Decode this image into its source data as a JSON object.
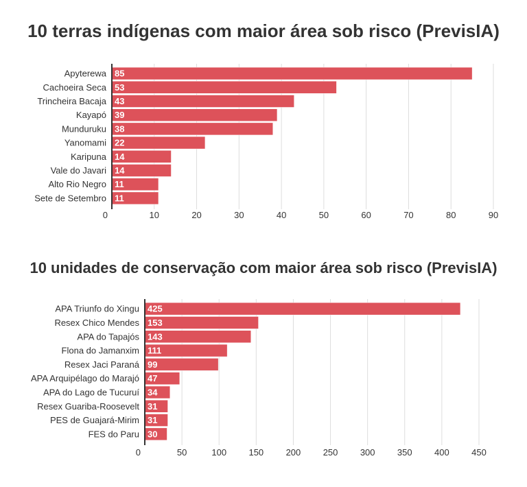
{
  "colors": {
    "bar": "#dd525a",
    "grid": "#dddddd",
    "axis": "#333333"
  },
  "chart_data": [
    {
      "type": "bar",
      "orientation": "horizontal",
      "title": "10 terras indígenas com maior área sob risco (PrevisIA)",
      "categories": [
        "Apyterewa",
        "Cachoeira Seca",
        "Trincheira Bacaja",
        "Kayapó",
        "Munduruku",
        "Yanomami",
        "Karipuna",
        "Vale do Javari",
        "Alto Rio Negro",
        "Sete de Setembro"
      ],
      "values": [
        85,
        53,
        43,
        39,
        38,
        22,
        14,
        14,
        11,
        11
      ],
      "xlim": [
        0,
        90
      ],
      "xticks": [
        0,
        10,
        20,
        30,
        40,
        50,
        60,
        70,
        80,
        90
      ],
      "grid": true,
      "data_labels": true
    },
    {
      "type": "bar",
      "orientation": "horizontal",
      "title": "10 unidades de conservação com maior área sob risco (PrevisIA)",
      "categories": [
        "APA Triunfo do Xingu",
        "Resex Chico Mendes",
        "APA do Tapajós",
        "Flona do Jamanxim",
        "Resex Jaci Paraná",
        "APA Arquipélago do Marajó",
        "APA do Lago de Tucuruí",
        "Resex Guariba-Roosevelt",
        "PES de Guajará-Mirim",
        "FES do Paru"
      ],
      "values": [
        425,
        153,
        143,
        111,
        99,
        47,
        34,
        31,
        31,
        30
      ],
      "xlim": [
        0,
        450
      ],
      "xticks": [
        0,
        50,
        100,
        150,
        200,
        250,
        300,
        350,
        400,
        450
      ],
      "grid": true,
      "data_labels": true
    }
  ]
}
